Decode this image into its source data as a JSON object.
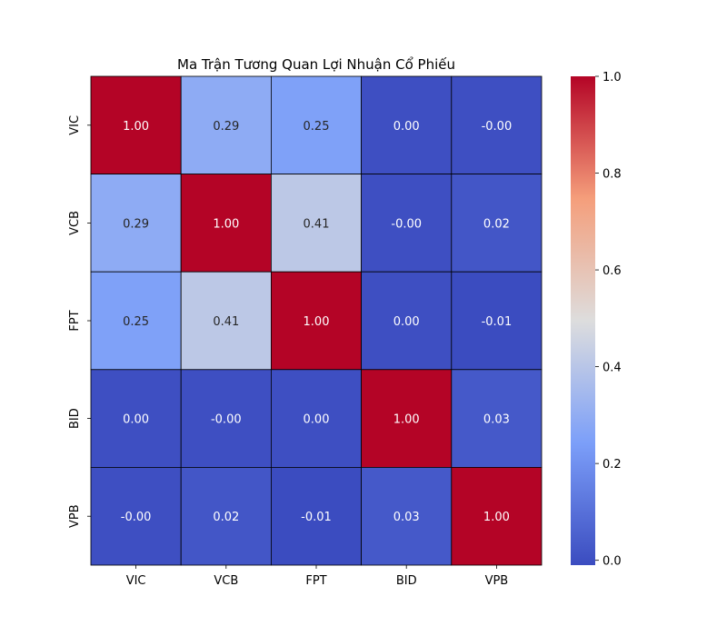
{
  "chart_data": {
    "type": "heatmap",
    "title": "Ma Trận Tương Quan Lợi Nhuận Cổ Phiếu",
    "x_labels": [
      "VIC",
      "VCB",
      "FPT",
      "BID",
      "VPB"
    ],
    "y_labels": [
      "VIC",
      "VCB",
      "FPT",
      "BID",
      "VPB"
    ],
    "values": [
      [
        1.0,
        0.29,
        0.25,
        0.0,
        -0.0
      ],
      [
        0.29,
        1.0,
        0.41,
        -0.0,
        0.02
      ],
      [
        0.25,
        0.41,
        1.0,
        0.0,
        -0.01
      ],
      [
        0.0,
        -0.0,
        0.0,
        1.0,
        0.03
      ],
      [
        -0.0,
        0.02,
        -0.01,
        0.03,
        1.0
      ]
    ],
    "cell_labels": [
      [
        "1.00",
        "0.29",
        "0.25",
        "0.00",
        "-0.00"
      ],
      [
        "0.29",
        "1.00",
        "0.41",
        "-0.00",
        "0.02"
      ],
      [
        "0.25",
        "0.41",
        "1.00",
        "0.00",
        "-0.01"
      ],
      [
        "0.00",
        "-0.00",
        "0.00",
        "1.00",
        "0.03"
      ],
      [
        "-0.00",
        "0.02",
        "-0.01",
        "0.03",
        "1.00"
      ]
    ],
    "colormap": "coolwarm",
    "vmin": -0.01,
    "vmax": 1.0,
    "colorbar_ticks": [
      0.0,
      0.2,
      0.4,
      0.6,
      0.8,
      1.0
    ],
    "colorbar_tick_labels": [
      "0.0",
      "0.2",
      "0.4",
      "0.6",
      "0.8",
      "1.0"
    ],
    "cell_border_color": "#000000"
  }
}
